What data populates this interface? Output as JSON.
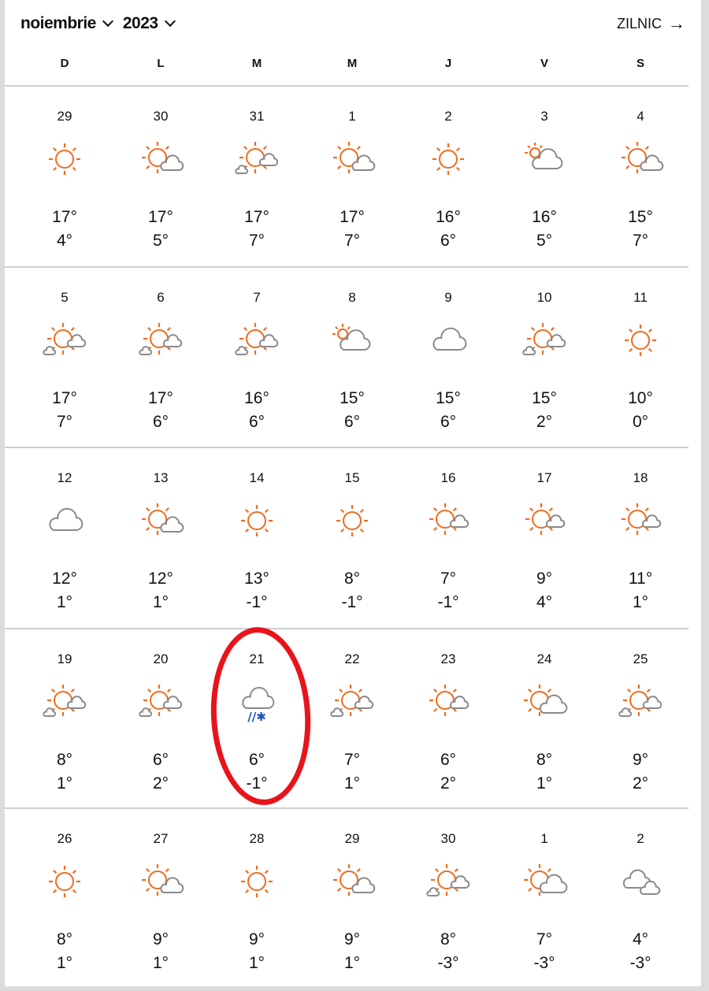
{
  "header": {
    "month": "noiembrie",
    "year": "2023",
    "view_toggle": "ZILNIC",
    "view_toggle_icon": "arrow-right-icon"
  },
  "weekdays": [
    "D",
    "L",
    "M",
    "M",
    "J",
    "V",
    "S"
  ],
  "colors": {
    "sun": "#f26a1b",
    "cloud": "#8a8a8a",
    "precip": "#1a4fc4",
    "highlight": "#e8141b"
  },
  "highlighted_day": "21",
  "weeks": [
    [
      {
        "date": "29",
        "icon": "sun",
        "high": "17°",
        "low": "4°"
      },
      {
        "date": "30",
        "icon": "sun-cloud",
        "high": "17°",
        "low": "5°"
      },
      {
        "date": "31",
        "icon": "sun-clouds",
        "high": "17°",
        "low": "7°"
      },
      {
        "date": "1",
        "icon": "sun-cloud",
        "high": "17°",
        "low": "7°"
      },
      {
        "date": "2",
        "icon": "sun",
        "high": "16°",
        "low": "6°"
      },
      {
        "date": "3",
        "icon": "cloud-sun-low",
        "high": "16°",
        "low": "5°"
      },
      {
        "date": "4",
        "icon": "sun-cloud",
        "high": "15°",
        "low": "7°"
      }
    ],
    [
      {
        "date": "5",
        "icon": "sun-clouds",
        "high": "17°",
        "low": "7°"
      },
      {
        "date": "6",
        "icon": "sun-clouds",
        "high": "17°",
        "low": "6°"
      },
      {
        "date": "7",
        "icon": "sun-clouds",
        "high": "16°",
        "low": "6°"
      },
      {
        "date": "8",
        "icon": "cloud-sun-low",
        "high": "15°",
        "low": "6°"
      },
      {
        "date": "9",
        "icon": "cloud",
        "high": "15°",
        "low": "6°"
      },
      {
        "date": "10",
        "icon": "sun-clouds",
        "high": "15°",
        "low": "2°"
      },
      {
        "date": "11",
        "icon": "sun",
        "high": "10°",
        "low": "0°"
      }
    ],
    [
      {
        "date": "12",
        "icon": "cloud",
        "high": "12°",
        "low": "1°"
      },
      {
        "date": "13",
        "icon": "sun-cloud",
        "high": "12°",
        "low": "1°"
      },
      {
        "date": "14",
        "icon": "sun",
        "high": "13°",
        "low": "-1°"
      },
      {
        "date": "15",
        "icon": "sun",
        "high": "8°",
        "low": "-1°"
      },
      {
        "date": "16",
        "icon": "sun-cloud-small",
        "high": "7°",
        "low": "-1°"
      },
      {
        "date": "17",
        "icon": "sun-cloud-small",
        "high": "9°",
        "low": "4°"
      },
      {
        "date": "18",
        "icon": "sun-cloud-small",
        "high": "11°",
        "low": "1°"
      }
    ],
    [
      {
        "date": "19",
        "icon": "sun-clouds",
        "high": "8°",
        "low": "1°"
      },
      {
        "date": "20",
        "icon": "sun-clouds",
        "high": "6°",
        "low": "2°"
      },
      {
        "date": "21",
        "icon": "rain-snow",
        "high": "6°",
        "low": "-1°"
      },
      {
        "date": "22",
        "icon": "sun-clouds",
        "high": "7°",
        "low": "1°"
      },
      {
        "date": "23",
        "icon": "sun-cloud-small",
        "high": "6°",
        "low": "2°"
      },
      {
        "date": "24",
        "icon": "sun-big-cloud",
        "high": "8°",
        "low": "1°"
      },
      {
        "date": "25",
        "icon": "sun-clouds",
        "high": "9°",
        "low": "2°"
      }
    ],
    [
      {
        "date": "26",
        "icon": "sun",
        "high": "8°",
        "low": "1°"
      },
      {
        "date": "27",
        "icon": "sun-cloud",
        "high": "9°",
        "low": "1°"
      },
      {
        "date": "28",
        "icon": "sun",
        "high": "9°",
        "low": "1°"
      },
      {
        "date": "29",
        "icon": "sun-cloud",
        "high": "9°",
        "low": "1°"
      },
      {
        "date": "30",
        "icon": "sun-clouds",
        "high": "8°",
        "low": "-3°"
      },
      {
        "date": "1",
        "icon": "sun-big-cloud",
        "high": "7°",
        "low": "-3°"
      },
      {
        "date": "2",
        "icon": "two-clouds",
        "high": "4°",
        "low": "-3°"
      }
    ]
  ]
}
